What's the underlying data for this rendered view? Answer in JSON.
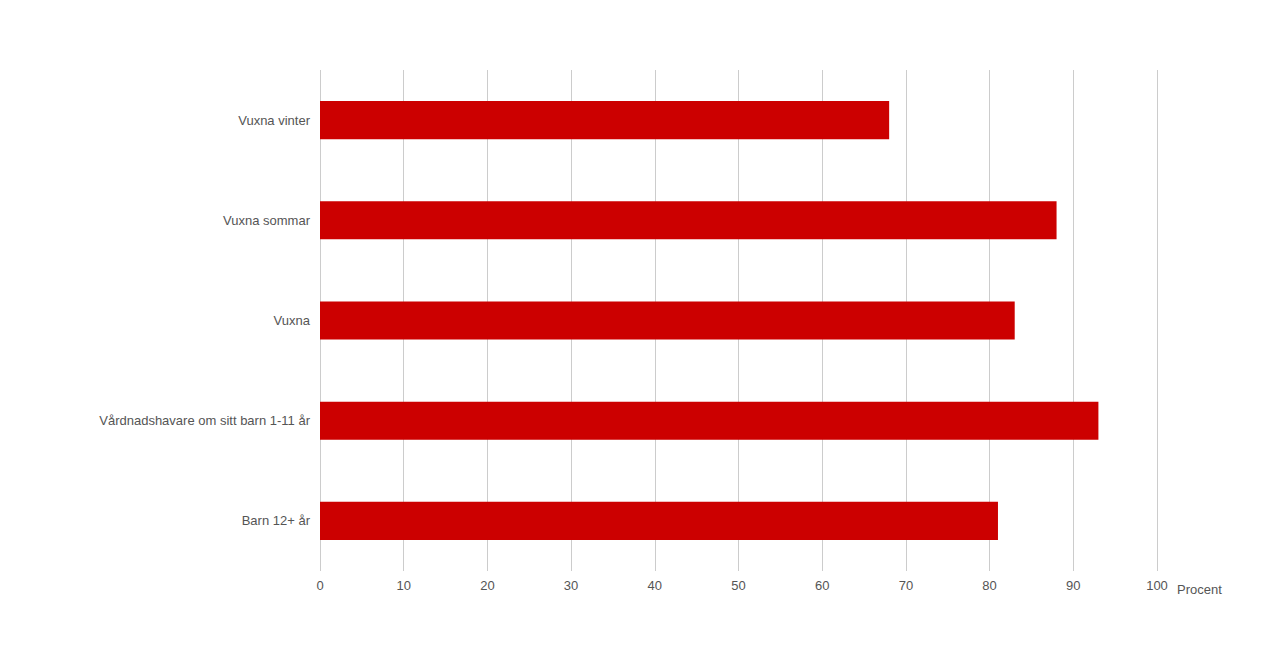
{
  "chart_data": {
    "type": "bar",
    "orientation": "horizontal",
    "categories": [
      "Barn 12+ år",
      "Vårdnadshavare om sitt barn 1-11 år",
      "Vuxna",
      "Vuxna sommar",
      "Vuxna vinter"
    ],
    "values": [
      81,
      93,
      83,
      88,
      68
    ],
    "color": "#cc0000",
    "xlabel": "Procent",
    "xlim": [
      0,
      100
    ],
    "xticks": [
      0,
      10,
      20,
      30,
      40,
      50,
      60,
      70,
      80,
      90,
      100
    ],
    "grid": true
  }
}
